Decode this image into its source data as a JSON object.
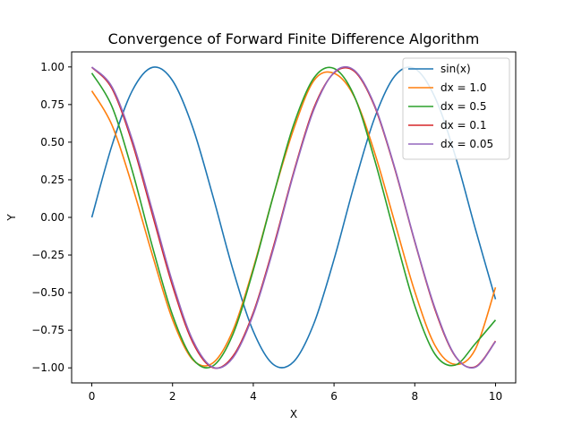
{
  "chart_data": {
    "type": "line",
    "title": "Convergence of Forward Finite Difference Algorithm",
    "xlabel": "X",
    "ylabel": "Y",
    "xlim": [
      -0.5,
      10.5
    ],
    "ylim": [
      -1.1,
      1.1
    ],
    "xticks": [
      0,
      2,
      4,
      6,
      8,
      10
    ],
    "xtick_labels": [
      "0",
      "2",
      "4",
      "6",
      "8",
      "10"
    ],
    "yticks": [
      -1.0,
      -0.75,
      -0.5,
      -0.25,
      0.0,
      0.25,
      0.5,
      0.75,
      1.0
    ],
    "ytick_labels": [
      "−1.00",
      "−0.75",
      "−0.50",
      "−0.25",
      "0.00",
      "0.25",
      "0.50",
      "0.75",
      "1.00"
    ],
    "grid": false,
    "legend_position": "top-right",
    "x": [
      0.0,
      0.5,
      1.0,
      1.5,
      2.0,
      2.5,
      3.0,
      3.5,
      4.0,
      4.5,
      5.0,
      5.5,
      6.0,
      6.5,
      7.0,
      7.5,
      8.0,
      8.5,
      9.0,
      9.5,
      10.0
    ],
    "series": [
      {
        "name": "sin(x)",
        "color": "#1f77b4",
        "values": [
          0.0,
          0.479,
          0.841,
          0.997,
          0.909,
          0.598,
          0.141,
          -0.351,
          -0.757,
          -0.978,
          -0.959,
          -0.706,
          -0.279,
          0.215,
          0.657,
          0.938,
          0.989,
          0.798,
          0.412,
          -0.075,
          -0.544
        ]
      },
      {
        "name": "dx = 1.0",
        "color": "#ff7f0e",
        "values": [
          0.841,
          0.613,
          0.211,
          -0.249,
          -0.68,
          -0.946,
          -0.967,
          -0.749,
          -0.337,
          0.147,
          0.587,
          0.909,
          0.958,
          0.803,
          0.435,
          -0.029,
          -0.493,
          -0.851,
          -0.977,
          -0.876,
          -0.465
        ]
      },
      {
        "name": "dx = 0.5",
        "color": "#2ca02c",
        "values": [
          0.959,
          0.736,
          0.312,
          -0.193,
          -0.65,
          -0.94,
          -0.987,
          -0.774,
          -0.35,
          0.148,
          0.616,
          0.926,
          0.99,
          0.807,
          0.388,
          -0.111,
          -0.588,
          -0.909,
          -0.982,
          -0.839,
          -0.682
        ]
      },
      {
        "name": "dx = 0.1",
        "color": "#d62728",
        "values": [
          0.998,
          0.856,
          0.497,
          0.02,
          -0.456,
          -0.83,
          -0.999,
          -0.921,
          -0.633,
          -0.193,
          0.3,
          0.728,
          0.96,
          0.972,
          0.741,
          0.327,
          -0.162,
          -0.612,
          -0.922,
          -0.993,
          -0.822
        ]
      },
      {
        "name": "dx = 0.05",
        "color": "#9467bd",
        "values": [
          0.999,
          0.867,
          0.518,
          0.046,
          -0.432,
          -0.815,
          -0.996,
          -0.931,
          -0.645,
          -0.208,
          0.29,
          0.716,
          0.963,
          0.978,
          0.749,
          0.334,
          -0.157,
          -0.603,
          -0.919,
          -0.996,
          -0.825
        ]
      }
    ]
  }
}
